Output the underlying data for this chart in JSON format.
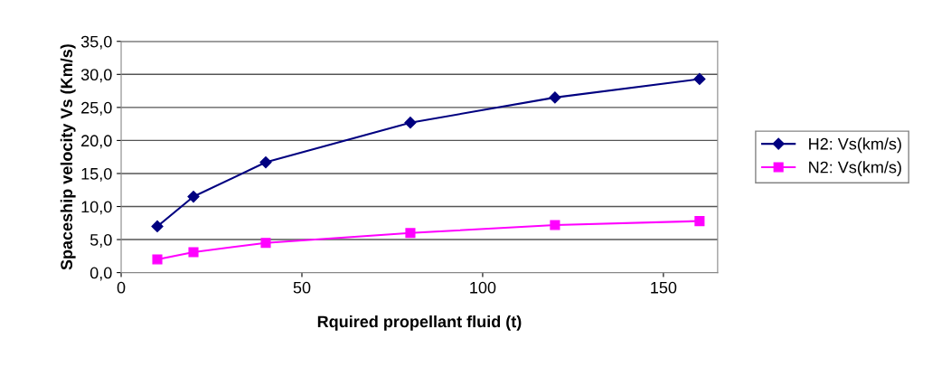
{
  "chart_data": {
    "type": "line",
    "xlabel": "Rquired propellant fluid (t)",
    "ylabel": "Spaceship velocity Vs (Km/s)",
    "x": [
      10,
      20,
      40,
      80,
      120,
      160
    ],
    "series": [
      {
        "name": "H2: Vs(km/s)",
        "color": "#000080",
        "marker": "diamond",
        "values": [
          7.0,
          11.5,
          16.7,
          22.7,
          26.5,
          29.3
        ]
      },
      {
        "name": "N2: Vs(km/s)",
        "color": "#ff00ff",
        "marker": "square",
        "values": [
          2.0,
          3.1,
          4.5,
          6.0,
          7.2,
          7.8
        ]
      }
    ],
    "xlim": [
      0,
      165
    ],
    "xticks": [
      0,
      50,
      100,
      150
    ],
    "ylim": [
      0,
      35
    ],
    "yticks": [
      {
        "value": 0,
        "label": "0,0"
      },
      {
        "value": 5,
        "label": "5,0"
      },
      {
        "value": 10,
        "label": "10,0"
      },
      {
        "value": 15,
        "label": "15,0"
      },
      {
        "value": 20,
        "label": "20,0"
      },
      {
        "value": 25,
        "label": "25,0"
      },
      {
        "value": 30,
        "label": "30,0"
      },
      {
        "value": 35,
        "label": "35,0"
      }
    ],
    "grid": "y",
    "legend": "right",
    "line_style": "solid"
  }
}
